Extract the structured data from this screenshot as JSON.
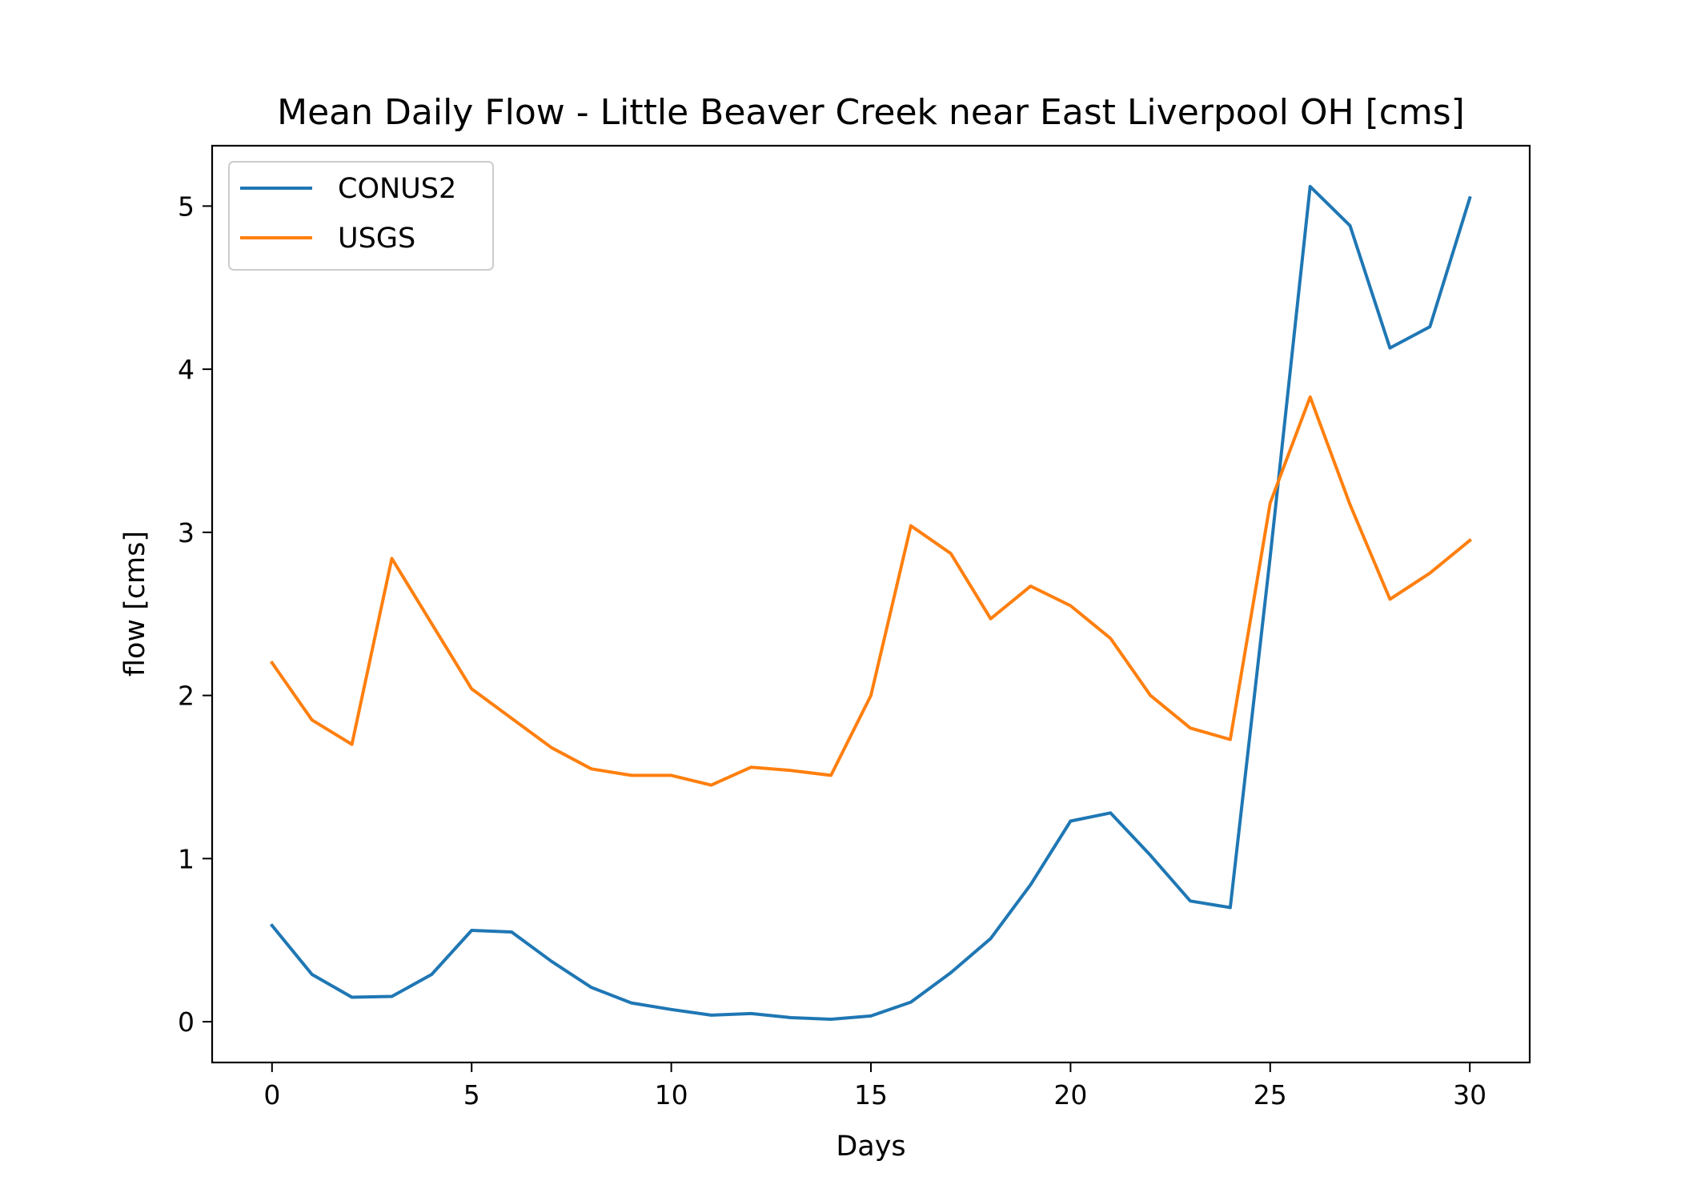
{
  "chart_data": {
    "type": "line",
    "title": "Mean Daily Flow - Little Beaver Creek near East Liverpool OH [cms]",
    "xlabel": "Days",
    "ylabel": "flow [cms]",
    "xlim": [
      -1.5,
      31.5
    ],
    "ylim": [
      -0.25,
      5.37
    ],
    "xticks": [
      0,
      5,
      10,
      15,
      20,
      25,
      30
    ],
    "yticks": [
      0,
      1,
      2,
      3,
      4,
      5
    ],
    "grid": false,
    "legend": "upper-left",
    "x": [
      0,
      1,
      2,
      3,
      4,
      5,
      6,
      7,
      8,
      9,
      10,
      11,
      12,
      13,
      14,
      15,
      16,
      17,
      18,
      19,
      20,
      21,
      22,
      23,
      24,
      25,
      26,
      27,
      28,
      29,
      30
    ],
    "series": [
      {
        "name": "CONUS2",
        "color": "#1f77b4",
        "values": [
          0.59,
          0.29,
          0.15,
          0.155,
          0.29,
          0.56,
          0.55,
          0.37,
          0.21,
          0.115,
          0.075,
          0.04,
          0.05,
          0.025,
          0.015,
          0.035,
          0.12,
          0.3,
          0.51,
          0.84,
          1.23,
          1.28,
          1.02,
          0.74,
          0.7,
          2.85,
          5.12,
          4.88,
          4.13,
          4.26,
          5.05
        ]
      },
      {
        "name": "USGS",
        "color": "#ff7f0e",
        "values": [
          2.2,
          1.85,
          1.7,
          2.84,
          2.44,
          2.04,
          1.86,
          1.68,
          1.55,
          1.51,
          1.51,
          1.45,
          1.56,
          1.54,
          1.51,
          2.0,
          3.04,
          2.87,
          2.47,
          2.67,
          2.55,
          2.35,
          2.0,
          1.8,
          1.73,
          3.18,
          3.83,
          3.17,
          2.59,
          2.75,
          2.95
        ]
      }
    ]
  }
}
